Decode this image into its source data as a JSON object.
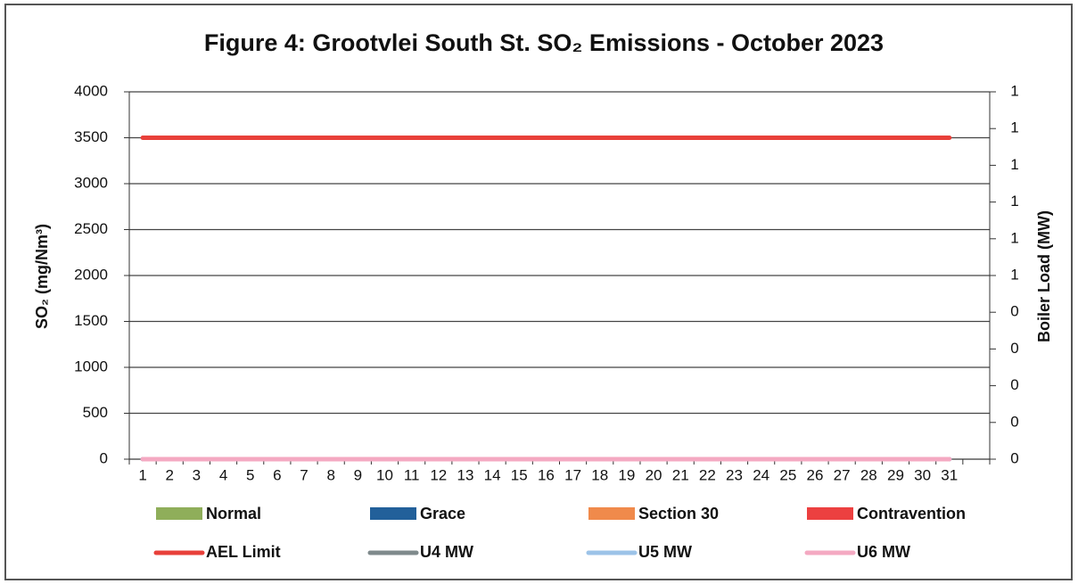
{
  "chart_data": {
    "type": "bar",
    "title": "Figure 4: Grootvlei South St. SO₂ Emissions -  October 2023",
    "y_label": "SO₂  (mg/Nm³)",
    "y2_label": "Boiler Load (MW)",
    "categories": [
      "1",
      "2",
      "3",
      "4",
      "5",
      "6",
      "7",
      "8",
      "9",
      "10",
      "11",
      "12",
      "13",
      "14",
      "15",
      "16",
      "17",
      "18",
      "19",
      "20",
      "21",
      "22",
      "23",
      "24",
      "25",
      "26",
      "27",
      "28",
      "29",
      "30",
      "31",
      null
    ],
    "ylim": [
      0,
      4000
    ],
    "yticks": [
      0,
      500,
      1000,
      1500,
      2000,
      2500,
      3000,
      3500,
      4000
    ],
    "y2lim": [
      0,
      1
    ],
    "y2ticks": [
      0,
      {
        "value": 0.1,
        "label": "0"
      },
      {
        "value": 0.2,
        "label": "0"
      },
      {
        "value": 0.3,
        "label": "0"
      },
      {
        "value": 0.4,
        "label": "0"
      },
      {
        "value": 0.5,
        "label": "1"
      },
      {
        "value": 0.6,
        "label": "1"
      },
      {
        "value": 0.7,
        "label": "1"
      },
      {
        "value": 0.8,
        "label": "1"
      },
      {
        "value": 0.9,
        "label": "1"
      },
      1
    ],
    "grid": true,
    "series": [
      {
        "name": "Normal",
        "kind": "bar",
        "color": "#8fae5a",
        "values": [
          0,
          0,
          0,
          0,
          0,
          0,
          0,
          0,
          0,
          0,
          0,
          0,
          0,
          0,
          0,
          0,
          0,
          0,
          0,
          0,
          0,
          0,
          0,
          0,
          0,
          0,
          0,
          0,
          0,
          0,
          0,
          null
        ]
      },
      {
        "name": "Grace",
        "kind": "bar",
        "color": "#22609a",
        "values": [
          0,
          0,
          0,
          0,
          0,
          0,
          0,
          0,
          0,
          0,
          0,
          0,
          0,
          0,
          0,
          0,
          0,
          0,
          0,
          0,
          0,
          0,
          0,
          0,
          0,
          0,
          0,
          0,
          0,
          0,
          0,
          null
        ]
      },
      {
        "name": "Section 30",
        "kind": "bar",
        "color": "#f08a4b",
        "values": [
          0,
          0,
          0,
          0,
          0,
          0,
          0,
          0,
          0,
          0,
          0,
          0,
          0,
          0,
          0,
          0,
          0,
          0,
          0,
          0,
          0,
          0,
          0,
          0,
          0,
          0,
          0,
          0,
          0,
          0,
          0,
          null
        ]
      },
      {
        "name": "Contravention",
        "kind": "bar",
        "color": "#ec4040",
        "values": [
          0,
          0,
          0,
          0,
          0,
          0,
          0,
          0,
          0,
          0,
          0,
          0,
          0,
          0,
          0,
          0,
          0,
          0,
          0,
          0,
          0,
          0,
          0,
          0,
          0,
          0,
          0,
          0,
          0,
          0,
          0,
          null
        ]
      },
      {
        "name": "AEL Limit",
        "kind": "line",
        "color": "#e8403a",
        "values": [
          3500,
          3500,
          3500,
          3500,
          3500,
          3500,
          3500,
          3500,
          3500,
          3500,
          3500,
          3500,
          3500,
          3500,
          3500,
          3500,
          3500,
          3500,
          3500,
          3500,
          3500,
          3500,
          3500,
          3500,
          3500,
          3500,
          3500,
          3500,
          3500,
          3500,
          3500,
          null
        ]
      },
      {
        "name": "U4 MW",
        "kind": "line",
        "axis": "y2",
        "color": "#7f8a8c",
        "values": [
          0,
          0,
          0,
          0,
          0,
          0,
          0,
          0,
          0,
          0,
          0,
          0,
          0,
          0,
          0,
          0,
          0,
          0,
          0,
          0,
          0,
          0,
          0,
          0,
          0,
          0,
          0,
          0,
          0,
          0,
          0,
          null
        ]
      },
      {
        "name": "U5 MW",
        "kind": "line",
        "axis": "y2",
        "color": "#9cc3e8",
        "values": [
          0,
          0,
          0,
          0,
          0,
          0,
          0,
          0,
          0,
          0,
          0,
          0,
          0,
          0,
          0,
          0,
          0,
          0,
          0,
          0,
          0,
          0,
          0,
          0,
          0,
          0,
          0,
          0,
          0,
          0,
          0,
          null
        ]
      },
      {
        "name": "U6 MW",
        "kind": "line",
        "axis": "y2",
        "color": "#f4a9c2",
        "values": [
          0,
          0,
          0,
          0,
          0,
          0,
          0,
          0,
          0,
          0,
          0,
          0,
          0,
          0,
          0,
          0,
          0,
          0,
          0,
          0,
          0,
          0,
          0,
          0,
          0,
          0,
          0,
          0,
          0,
          0,
          0,
          null
        ]
      }
    ]
  }
}
